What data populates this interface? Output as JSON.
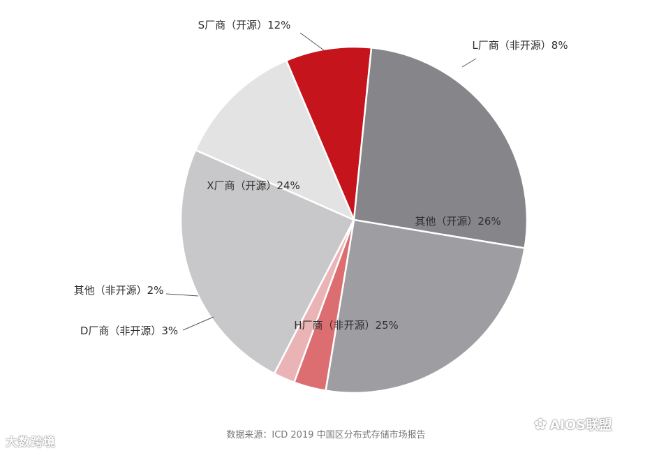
{
  "chart_data": {
    "type": "pie",
    "slices": [
      {
        "label": "L厂商（非开源）8%",
        "value": 8,
        "color": "#c5141c",
        "text_inside": false
      },
      {
        "label": "其他（开源）26%",
        "value": 26,
        "color": "#86868a",
        "text_inside": true
      },
      {
        "label": "H厂商（非开源）25%",
        "value": 25,
        "color": "#9e9ea2",
        "text_inside": true
      },
      {
        "label": "D厂商（非开源）3%",
        "value": 3,
        "color": "#dc6e72",
        "text_inside": false
      },
      {
        "label": "其他（非开源）2%",
        "value": 2,
        "color": "#eab4b6",
        "text_inside": false
      },
      {
        "label": "X厂商（开源）24%",
        "value": 24,
        "color": "#c8c8ca",
        "text_inside": true
      },
      {
        "label": "S厂商（开源）12%",
        "value": 12,
        "color": "#e3e3e4",
        "text_inside": false
      }
    ],
    "start": "clockwise from about 8 o'clock position of 1 o'clock",
    "legend": "none"
  },
  "source": "数据来源：ICD 2019 中国区分布式存储市场报告",
  "watermarks": {
    "left": "大数跨境",
    "right": "AIOS联盟",
    "right_icon": "wechat-icon"
  }
}
